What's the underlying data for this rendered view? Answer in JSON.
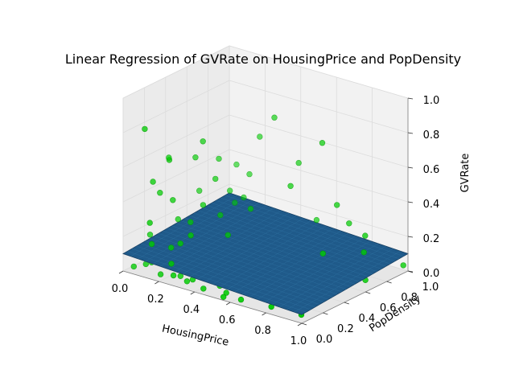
{
  "chart_data": {
    "type": "scatter",
    "title": "Linear Regression of GVRate on HousingPrice and PopDensity",
    "xlabel": "HousingPrice",
    "ylabel": "PopDensity",
    "zlabel": "GVRate",
    "xlim": [
      0,
      1
    ],
    "ylim": [
      0,
      1
    ],
    "zlim": [
      0,
      1
    ],
    "x_ticks": [
      "0.0",
      "0.2",
      "0.4",
      "0.6",
      "0.8",
      "1.0"
    ],
    "y_ticks": [
      "0.0",
      "0.2",
      "0.4",
      "0.6",
      "0.8",
      "1.0"
    ],
    "z_ticks": [
      "0.0",
      "0.2",
      "0.4",
      "0.6",
      "0.8",
      "1.0"
    ],
    "grid": true,
    "colors": {
      "points": "#00cc00",
      "points_edge": "#009900",
      "plane": "#1f5a8a",
      "plane_line": "#2b6c9c",
      "pane": "#f2f2f2",
      "grid": "#dcdcdc"
    },
    "regression_plane": {
      "intercept": 0.1,
      "coef_housingprice": -0.05,
      "coef_popdensity": 0.05
    },
    "series": [
      {
        "values": [
          {
            "x": 0.06,
            "y": 0.85,
            "z": 0.05
          },
          {
            "x": 0.08,
            "y": 0.7,
            "z": 0.1
          },
          {
            "x": 0.05,
            "y": 0.12,
            "z": 0.8
          },
          {
            "x": 0.1,
            "y": 0.3,
            "z": 0.35
          },
          {
            "x": 0.03,
            "y": 0.05,
            "z": 0.02
          },
          {
            "x": 0.12,
            "y": 0.55,
            "z": 0.62
          },
          {
            "x": 0.15,
            "y": 0.2,
            "z": 0.12
          },
          {
            "x": 0.07,
            "y": 0.4,
            "z": 0.2
          },
          {
            "x": 0.04,
            "y": 0.65,
            "z": 0.28
          },
          {
            "x": 0.1,
            "y": 0.1,
            "z": 0.05
          },
          {
            "x": 0.14,
            "y": 0.35,
            "z": 0.01
          },
          {
            "x": 0.09,
            "y": 0.9,
            "z": 0.15
          },
          {
            "x": 0.18,
            "y": 0.45,
            "z": 0.3
          },
          {
            "x": 0.11,
            "y": 0.25,
            "z": 0.6
          },
          {
            "x": 0.06,
            "y": 0.18,
            "z": 0.48
          },
          {
            "x": 0.13,
            "y": 0.75,
            "z": 0.08
          },
          {
            "x": 0.2,
            "y": 0.15,
            "z": 0.03
          },
          {
            "x": 0.16,
            "y": 0.6,
            "z": 0.4
          },
          {
            "x": 0.03,
            "y": 0.38,
            "z": 0.55
          },
          {
            "x": 0.08,
            "y": 0.08,
            "z": 0.04
          },
          {
            "x": 0.22,
            "y": 0.3,
            "z": 0.02
          },
          {
            "x": 0.12,
            "y": 0.05,
            "z": 0.3
          },
          {
            "x": 0.05,
            "y": 0.5,
            "z": 0.1
          },
          {
            "x": 0.17,
            "y": 0.85,
            "z": 0.22
          },
          {
            "x": 0.25,
            "y": 0.12,
            "z": 0.01
          },
          {
            "x": 0.1,
            "y": 0.62,
            "z": 0.05
          },
          {
            "x": 0.19,
            "y": 0.22,
            "z": 0.15
          },
          {
            "x": 0.07,
            "y": 0.95,
            "z": 0.35
          },
          {
            "x": 0.28,
            "y": 0.4,
            "z": 0.02
          },
          {
            "x": 0.14,
            "y": 0.15,
            "z": 0.08
          },
          {
            "x": 0.24,
            "y": 0.05,
            "z": 0.1
          },
          {
            "x": 0.3,
            "y": 0.28,
            "z": 0.03
          },
          {
            "x": 0.11,
            "y": 0.45,
            "z": 0.18
          },
          {
            "x": 0.21,
            "y": 0.7,
            "z": 0.05
          },
          {
            "x": 0.33,
            "y": 0.1,
            "z": 0.02
          },
          {
            "x": 0.26,
            "y": 0.55,
            "z": 0.12
          },
          {
            "x": 0.09,
            "y": 0.28,
            "z": 0.09
          },
          {
            "x": 0.35,
            "y": 0.2,
            "z": 0.04
          },
          {
            "x": 0.31,
            "y": 0.08,
            "z": 0.01
          },
          {
            "x": 0.15,
            "y": 0.5,
            "z": 0.06
          },
          {
            "x": 0.38,
            "y": 0.35,
            "z": 0.03
          },
          {
            "x": 0.23,
            "y": 0.25,
            "z": 0.2
          },
          {
            "x": 0.4,
            "y": 0.15,
            "z": 0.05
          },
          {
            "x": 0.36,
            "y": 0.5,
            "z": 0.02
          },
          {
            "x": 0.42,
            "y": 0.05,
            "z": 0.01
          },
          {
            "x": 0.29,
            "y": 0.18,
            "z": 0.07
          },
          {
            "x": 0.44,
            "y": 0.3,
            "z": 0.04
          },
          {
            "x": 0.18,
            "y": 0.05,
            "z": 0.02
          },
          {
            "x": 0.47,
            "y": 0.12,
            "z": 0.02
          },
          {
            "x": 0.34,
            "y": 0.65,
            "z": 0.06
          },
          {
            "x": 0.5,
            "y": 0.22,
            "z": 0.03
          },
          {
            "x": 0.27,
            "y": 0.02,
            "z": 0.05
          },
          {
            "x": 0.53,
            "y": 0.08,
            "z": 0.01
          },
          {
            "x": 0.39,
            "y": 0.42,
            "z": 0.08
          },
          {
            "x": 0.56,
            "y": 0.35,
            "z": 0.02
          },
          {
            "x": 0.46,
            "y": 0.6,
            "z": 0.04
          },
          {
            "x": 0.6,
            "y": 0.15,
            "z": 0.03
          },
          {
            "x": 0.32,
            "y": 0.8,
            "z": 0.03
          },
          {
            "x": 0.63,
            "y": 0.05,
            "z": 0.01
          },
          {
            "x": 0.52,
            "y": 0.48,
            "z": 0.06
          },
          {
            "x": 0.66,
            "y": 0.25,
            "z": 0.02
          },
          {
            "x": 0.58,
            "y": 0.7,
            "z": 0.05
          },
          {
            "x": 0.7,
            "y": 0.1,
            "z": 0.04
          },
          {
            "x": 0.48,
            "y": 0.88,
            "z": 0.02
          },
          {
            "x": 0.73,
            "y": 0.4,
            "z": 0.02
          },
          {
            "x": 0.62,
            "y": 0.85,
            "z": 0.1
          },
          {
            "x": 0.76,
            "y": 0.2,
            "z": 0.01
          },
          {
            "x": 0.68,
            "y": 0.55,
            "z": 0.03
          },
          {
            "x": 0.8,
            "y": 0.05,
            "z": 0.02
          },
          {
            "x": 0.85,
            "y": 0.3,
            "z": 0.01
          },
          {
            "x": 0.9,
            "y": 0.15,
            "z": 0.0
          },
          {
            "x": 0.95,
            "y": 0.08,
            "z": 0.01
          },
          {
            "x": 0.78,
            "y": 0.75,
            "z": 0.04
          },
          {
            "x": 0.88,
            "y": 0.45,
            "z": 0.02
          },
          {
            "x": 0.2,
            "y": 0.95,
            "z": 0.55
          },
          {
            "x": 0.3,
            "y": 0.92,
            "z": 0.7
          },
          {
            "x": 0.55,
            "y": 0.95,
            "z": 0.62
          },
          {
            "x": 0.4,
            "y": 0.98,
            "z": 0.45
          },
          {
            "x": 0.65,
            "y": 0.92,
            "z": 0.3
          },
          {
            "x": 0.45,
            "y": 0.82,
            "z": 0.38
          },
          {
            "x": 0.5,
            "y": 0.98,
            "z": 0.15
          },
          {
            "x": 0.7,
            "y": 0.95,
            "z": 0.2
          },
          {
            "x": 0.82,
            "y": 0.9,
            "z": 0.18
          },
          {
            "x": 0.6,
            "y": 0.78,
            "z": 0.09
          },
          {
            "x": 0.92,
            "y": 0.95,
            "z": 0.05
          },
          {
            "x": 0.75,
            "y": 0.62,
            "z": 0.14
          },
          {
            "x": 0.86,
            "y": 0.82,
            "z": 0.12
          },
          {
            "x": 0.98,
            "y": 0.99,
            "z": 0.03
          },
          {
            "x": 0.02,
            "y": 0.22,
            "z": 0.15
          },
          {
            "x": 0.13,
            "y": 0.05,
            "z": 0.18
          },
          {
            "x": 0.04,
            "y": 0.28,
            "z": 0.38
          },
          {
            "x": 0.09,
            "y": 0.75,
            "z": 0.45
          },
          {
            "x": 0.16,
            "y": 0.92,
            "z": 0.33
          },
          {
            "x": 0.11,
            "y": 0.82,
            "z": 0.25
          },
          {
            "x": 0.21,
            "y": 0.48,
            "z": 0.1
          },
          {
            "x": 0.06,
            "y": 0.58,
            "z": 0.5
          },
          {
            "x": 0.25,
            "y": 0.78,
            "z": 0.2
          },
          {
            "x": 0.19,
            "y": 0.38,
            "z": 0.05
          },
          {
            "x": 0.37,
            "y": 0.6,
            "z": 0.05
          },
          {
            "x": 0.43,
            "y": 0.72,
            "z": 0.04
          },
          {
            "x": 0.57,
            "y": 0.55,
            "z": 0.02
          },
          {
            "x": 0.64,
            "y": 0.4,
            "z": 0.03
          },
          {
            "x": 0.72,
            "y": 0.8,
            "z": 0.02
          },
          {
            "x": 0.84,
            "y": 0.6,
            "z": 0.03
          },
          {
            "x": 0.94,
            "y": 0.7,
            "z": 0.02
          },
          {
            "x": 0.22,
            "y": 0.12,
            "z": 0.06
          },
          {
            "x": 0.34,
            "y": 0.32,
            "z": 0.01
          },
          {
            "x": 0.41,
            "y": 0.25,
            "z": 0.02
          },
          {
            "x": 0.51,
            "y": 0.35,
            "z": 0.01
          },
          {
            "x": 0.08,
            "y": 0.45,
            "z": 0.07
          },
          {
            "x": 0.17,
            "y": 0.28,
            "z": 0.02
          },
          {
            "x": 0.26,
            "y": 0.38,
            "z": 0.03
          },
          {
            "x": 0.03,
            "y": 0.8,
            "z": 0.12
          },
          {
            "x": 0.14,
            "y": 0.68,
            "z": 0.16
          },
          {
            "x": 0.28,
            "y": 0.62,
            "z": 0.09
          },
          {
            "x": 0.45,
            "y": 0.18,
            "z": 0.02
          },
          {
            "x": 0.55,
            "y": 0.02,
            "z": 0.01
          }
        ]
      }
    ]
  }
}
